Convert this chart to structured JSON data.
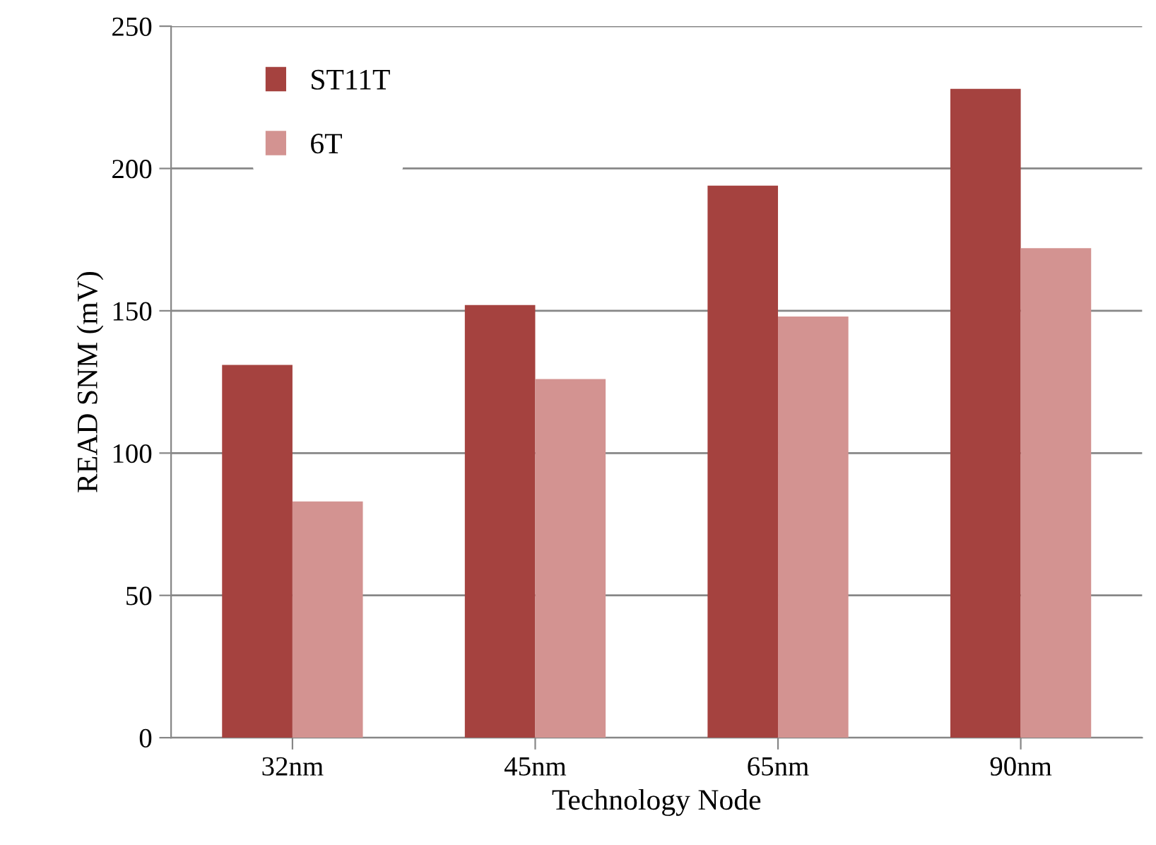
{
  "chart_data": {
    "type": "bar",
    "xlabel": "Technology Node",
    "ylabel": "READ SNM (mV)",
    "categories": [
      "32nm",
      "45nm",
      "65nm",
      "90nm"
    ],
    "series": [
      {
        "name": "ST11T",
        "color": "#a5423f",
        "values": [
          131,
          152,
          194,
          228
        ]
      },
      {
        "name": "6T",
        "color": "#d39391",
        "values": [
          83,
          126,
          148,
          172
        ]
      }
    ],
    "ylim": [
      0,
      250
    ],
    "yticks": [
      0,
      50,
      100,
      150,
      200,
      250
    ],
    "grid": "y",
    "legend": "top left"
  }
}
